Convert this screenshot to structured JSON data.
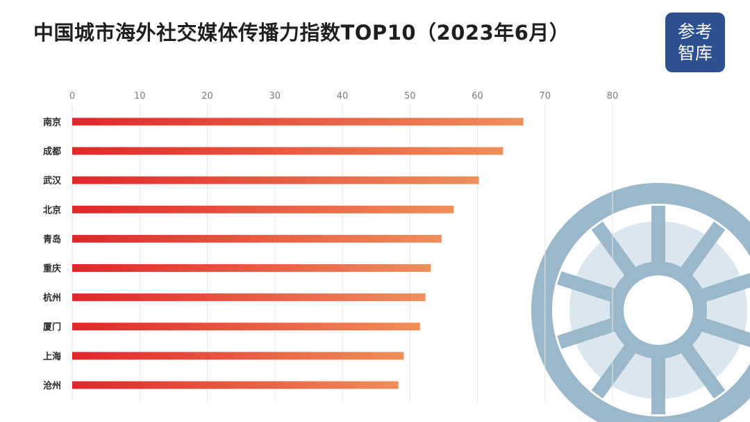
{
  "title": "中国城市海外社交媒体传播力指数TOP10（2023年6月）",
  "logo": {
    "line1": "参考",
    "line2": "智库"
  },
  "colors": {
    "bar_start": "#e0262a",
    "bar_end": "#ef8f5a",
    "logo_bg": "#2d5190",
    "wheel": "#9ab8c9"
  },
  "chart_data": {
    "type": "bar",
    "orientation": "horizontal",
    "categories": [
      "南京",
      "成都",
      "武汉",
      "北京",
      "青岛",
      "重庆",
      "杭州",
      "厦门",
      "上海",
      "沧州"
    ],
    "values": [
      66.8,
      63.8,
      60.2,
      56.5,
      54.7,
      53.1,
      52.3,
      51.5,
      49.1,
      48.3
    ],
    "x_ticks": [
      "0",
      "10",
      "20",
      "30",
      "40",
      "50",
      "60",
      "70",
      "80"
    ],
    "xlim": [
      0,
      80
    ],
    "axis_position": "top",
    "grid": true,
    "title": "中国城市海外社交媒体传播力指数TOP10（2023年6月）"
  }
}
